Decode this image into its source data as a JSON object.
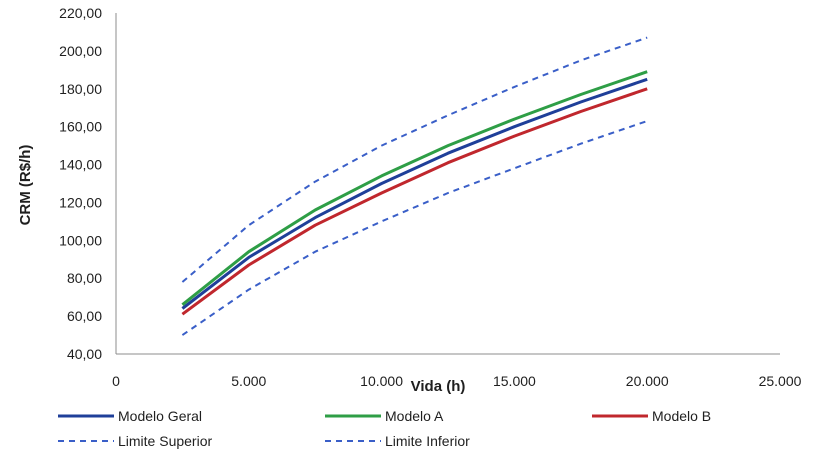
{
  "chart_data": {
    "type": "line",
    "title": "",
    "xlabel": "Vida (h)",
    "ylabel": "CRM (R$/h)",
    "xlim": [
      0,
      25000
    ],
    "ylim": [
      40,
      220
    ],
    "x_ticks": [
      0,
      5000,
      10000,
      15000,
      20000,
      25000
    ],
    "x_tick_labels": [
      "0",
      "5.000",
      "10.000",
      "15.000",
      "20.000",
      "25.000"
    ],
    "y_ticks": [
      40,
      60,
      80,
      100,
      120,
      140,
      160,
      180,
      200,
      220
    ],
    "y_tick_labels": [
      "40,00",
      "60,00",
      "80,00",
      "100,00",
      "120,00",
      "140,00",
      "160,00",
      "180,00",
      "200,00",
      "220,00"
    ],
    "grid": false,
    "legend_position": "bottom",
    "x": [
      2500,
      5000,
      7500,
      10000,
      12500,
      15000,
      17500,
      20000
    ],
    "series": [
      {
        "name": "Modelo Geral",
        "color": "#1f3f99",
        "dash": "solid",
        "values": [
          64,
          91,
          112,
          130,
          146,
          160,
          173,
          185
        ]
      },
      {
        "name": "Modelo A",
        "color": "#2e9e46",
        "dash": "solid",
        "values": [
          66,
          94,
          116,
          134,
          150,
          164,
          177,
          189
        ]
      },
      {
        "name": "Modelo B",
        "color": "#c0272d",
        "dash": "solid",
        "values": [
          61,
          87,
          108,
          125,
          141,
          155,
          168,
          180
        ]
      },
      {
        "name": "Limite Superior",
        "color": "#3a5fc8",
        "dash": "dashed",
        "values": [
          78,
          108,
          131,
          150,
          166,
          181,
          195,
          207
        ]
      },
      {
        "name": "Limite Inferior",
        "color": "#3a5fc8",
        "dash": "dashed",
        "values": [
          50,
          74,
          94,
          110,
          125,
          138,
          151,
          163
        ]
      }
    ]
  }
}
